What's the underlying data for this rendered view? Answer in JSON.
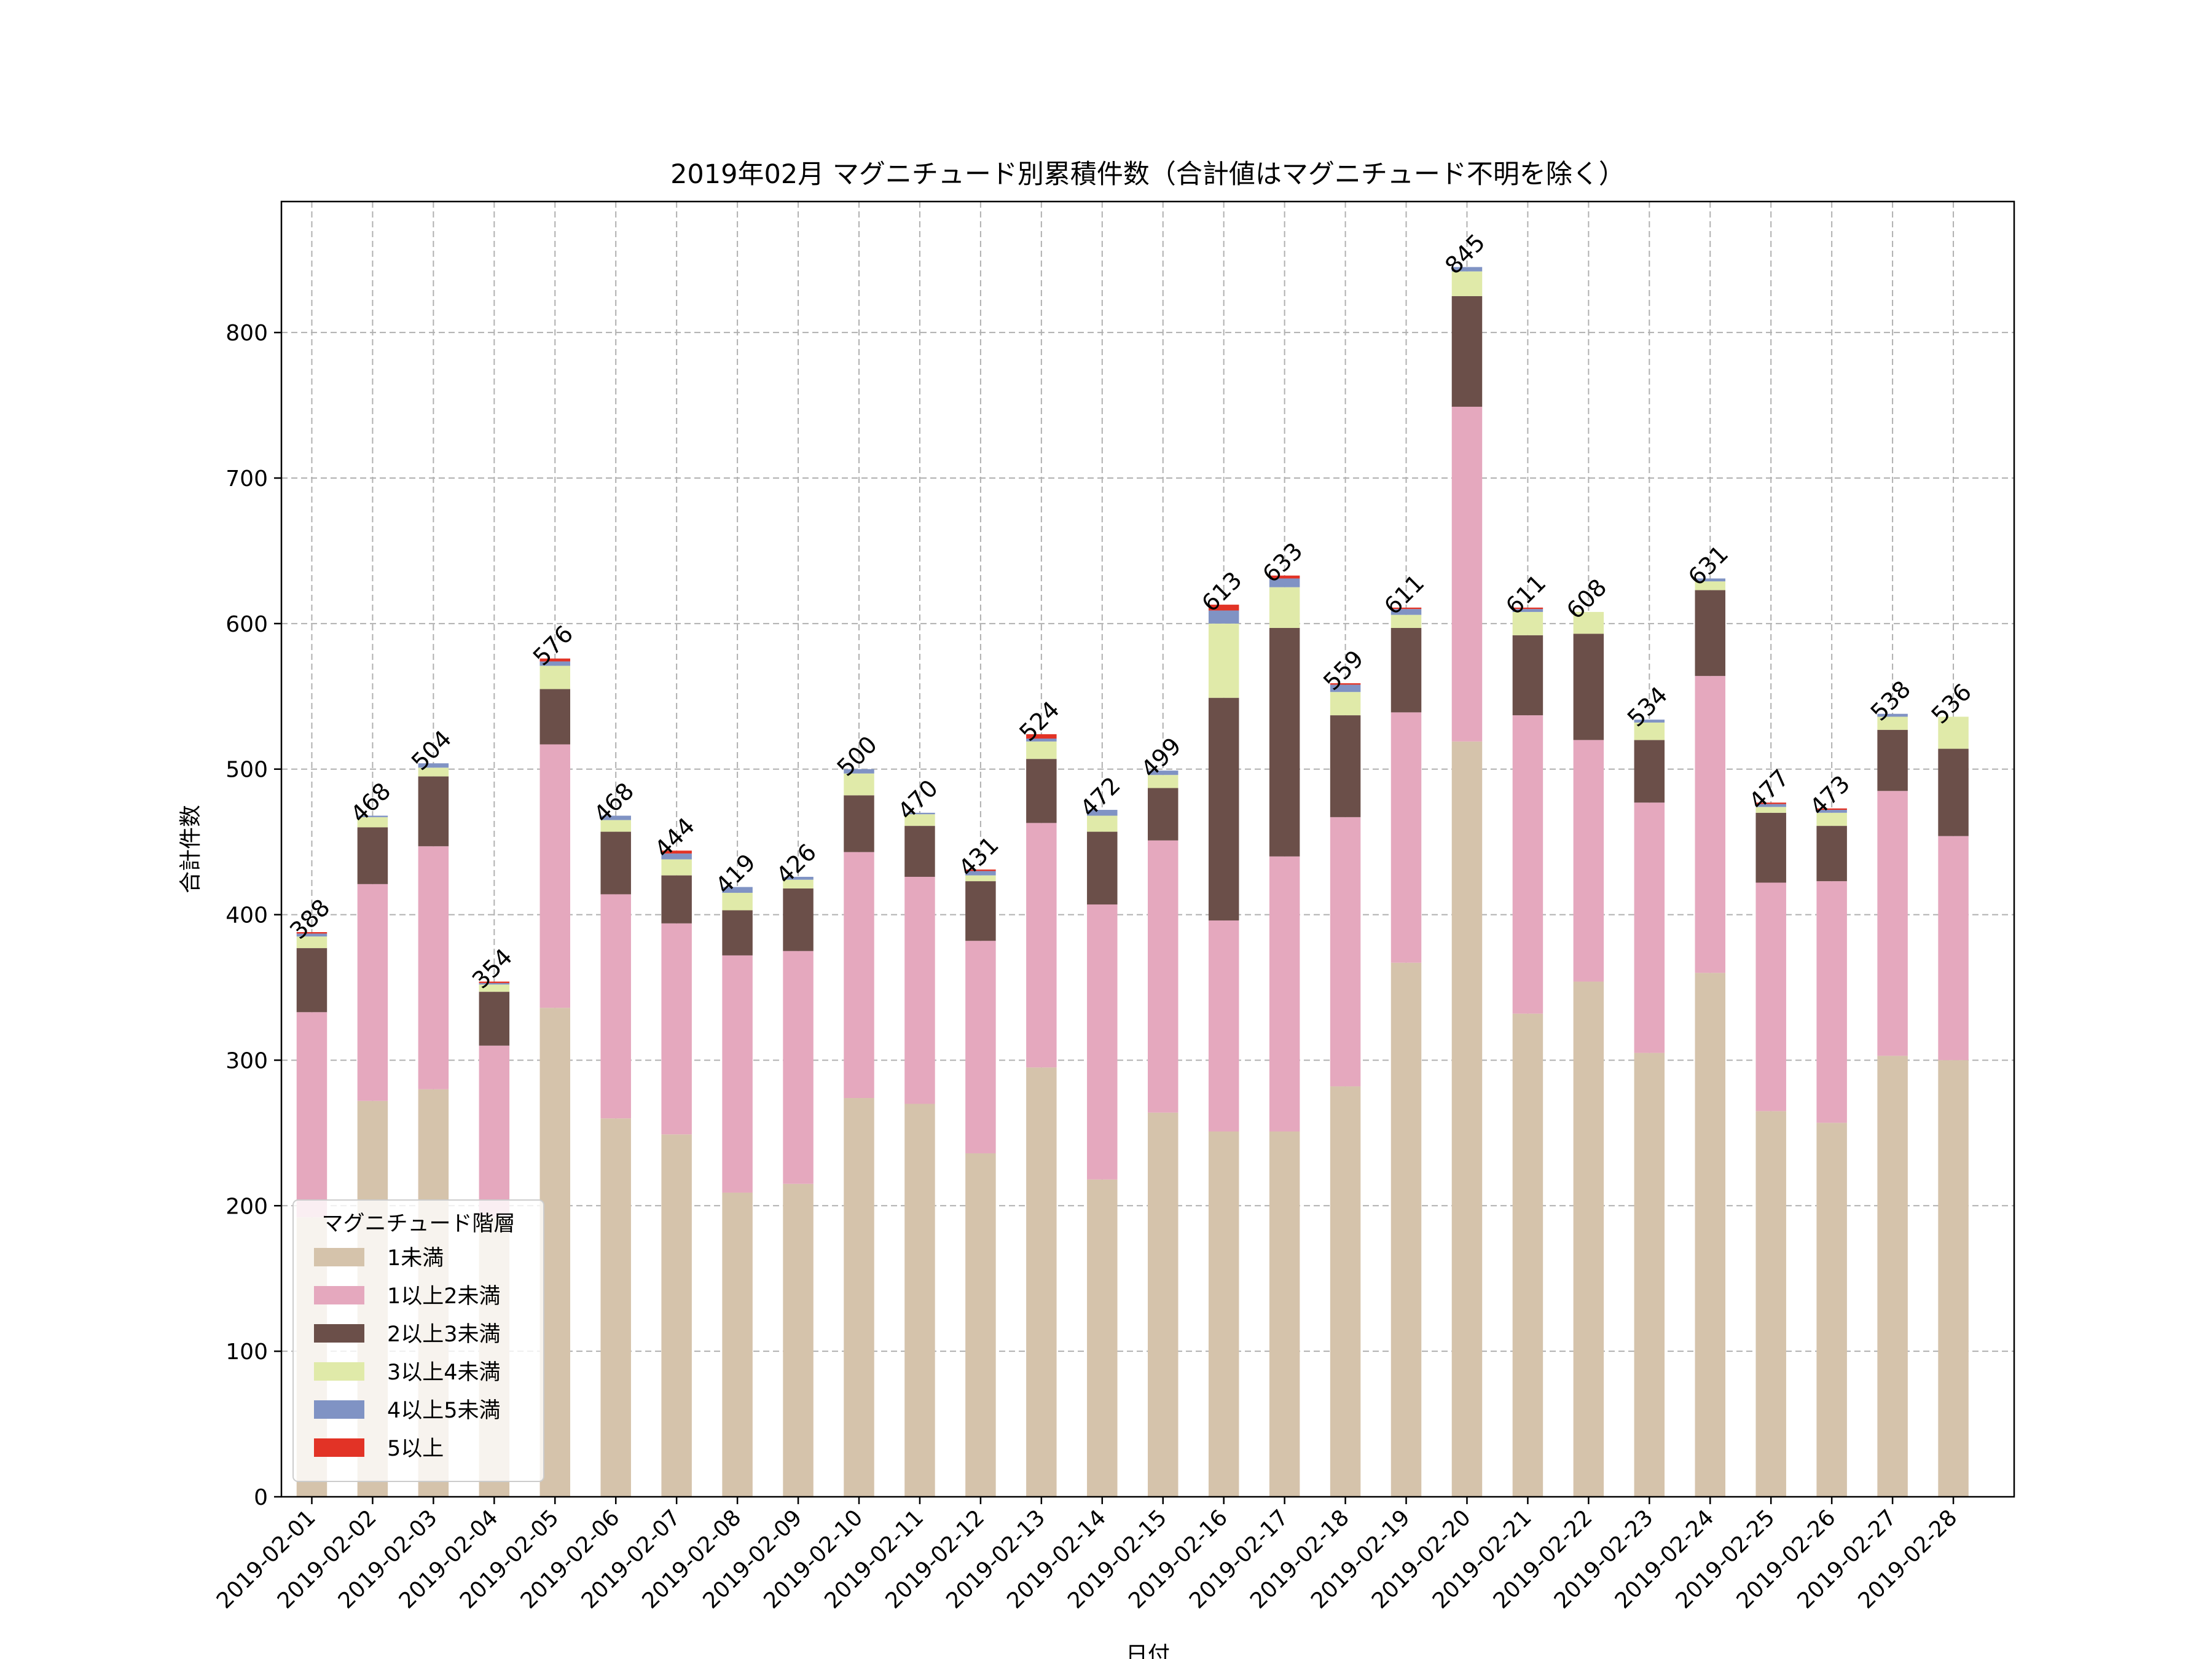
{
  "chart_data": {
    "type": "bar",
    "stacked": true,
    "title": "2019年02月 マグニチュード別累積件数（合計値はマグニチュード不明を除く）",
    "xlabel": "日付",
    "ylabel": "合計件数",
    "ylim": [
      0,
      890
    ],
    "yticks": [
      0,
      100,
      200,
      300,
      400,
      500,
      600,
      700,
      800
    ],
    "grid": true,
    "legend_title": "マグニチュード階層",
    "legend_position": "lower-left",
    "categories": [
      "2019-02-01",
      "2019-02-02",
      "2019-02-03",
      "2019-02-04",
      "2019-02-05",
      "2019-02-06",
      "2019-02-07",
      "2019-02-08",
      "2019-02-09",
      "2019-02-10",
      "2019-02-11",
      "2019-02-12",
      "2019-02-13",
      "2019-02-14",
      "2019-02-15",
      "2019-02-16",
      "2019-02-17",
      "2019-02-18",
      "2019-02-19",
      "2019-02-20",
      "2019-02-21",
      "2019-02-22",
      "2019-02-23",
      "2019-02-24",
      "2019-02-25",
      "2019-02-26",
      "2019-02-27",
      "2019-02-28"
    ],
    "totals": [
      388,
      468,
      504,
      354,
      576,
      468,
      444,
      419,
      426,
      500,
      470,
      431,
      524,
      472,
      499,
      613,
      633,
      559,
      611,
      845,
      611,
      608,
      534,
      631,
      477,
      473,
      538,
      536
    ],
    "series": [
      {
        "name": "1未満",
        "color": "#d5c3ab",
        "values": [
          192,
          272,
          280,
          192,
          336,
          260,
          249,
          209,
          215,
          274,
          270,
          236,
          295,
          218,
          264,
          251,
          251,
          282,
          367,
          519,
          332,
          354,
          305,
          360,
          265,
          257,
          303,
          300
        ]
      },
      {
        "name": "1以上2未満",
        "color": "#e5a8be",
        "values": [
          141,
          149,
          167,
          118,
          181,
          154,
          145,
          163,
          160,
          169,
          156,
          146,
          168,
          189,
          187,
          145,
          189,
          185,
          172,
          230,
          205,
          166,
          172,
          204,
          157,
          166,
          182,
          154
        ]
      },
      {
        "name": "2以上3未満",
        "color": "#6b4f49",
        "values": [
          44,
          39,
          48,
          37,
          38,
          43,
          33,
          31,
          43,
          39,
          35,
          41,
          44,
          50,
          36,
          153,
          157,
          70,
          58,
          76,
          55,
          73,
          43,
          59,
          48,
          38,
          42,
          60
        ]
      },
      {
        "name": "3以上4未満",
        "color": "#e0eaa9",
        "values": [
          8,
          7,
          6,
          5,
          16,
          8,
          11,
          12,
          6,
          15,
          8,
          4,
          12,
          11,
          9,
          51,
          28,
          16,
          9,
          17,
          16,
          15,
          12,
          6,
          4,
          9,
          9,
          22
        ]
      },
      {
        "name": "4以上5未満",
        "color": "#8093c4",
        "values": [
          2,
          1,
          3,
          1,
          3,
          3,
          4,
          4,
          2,
          3,
          1,
          3,
          2,
          4,
          3,
          9,
          6,
          5,
          4,
          3,
          2,
          0,
          2,
          2,
          2,
          2,
          2,
          0
        ]
      },
      {
        "name": "5以上",
        "color": "#e23326",
        "values": [
          1,
          0,
          0,
          1,
          2,
          0,
          2,
          0,
          0,
          0,
          0,
          1,
          3,
          0,
          0,
          4,
          2,
          1,
          1,
          0,
          1,
          0,
          0,
          0,
          1,
          1,
          0,
          0
        ]
      }
    ]
  }
}
